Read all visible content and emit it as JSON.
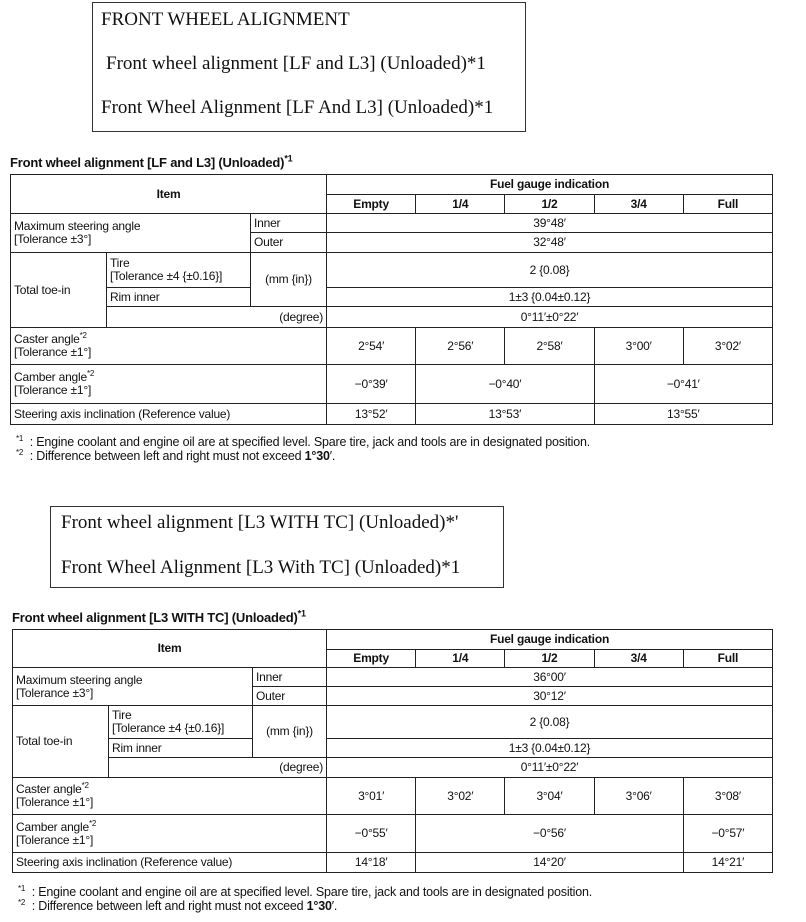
{
  "box1": {
    "heading": "FRONT WHEEL ALIGNMENT",
    "line1": "Front wheel alignment [LF and L3] (Unloaded)*1",
    "line2": "Front Wheel Alignment [LF And L3] (Unloaded)*1"
  },
  "box2": {
    "line1": "Front wheel alignment [L3 WITH TC] (Unloaded)*'",
    "line2": "Front Wheel Alignment [L3 With TC] (Unloaded)*1"
  },
  "tables": [
    {
      "title": "Front wheel alignment [LF and L3] (Unloaded)",
      "title_mark": "*1",
      "header": {
        "item": "Item",
        "group": "Fuel gauge indication",
        "columns": [
          "Empty",
          "1/4",
          "1/2",
          "3/4",
          "Full"
        ]
      },
      "max_steering": {
        "label": "Maximum steering angle",
        "tolerance": "[Tolerance ±3°]",
        "inner_label": "Inner",
        "inner": "39°48′",
        "outer_label": "Outer",
        "outer": "32°48′"
      },
      "toe_in": {
        "label": "Total toe-in",
        "tire_label": "Tire",
        "tire_tolerance": "[Tolerance ±4 {±0.16}]",
        "unit_mm": "(mm {in})",
        "tire": "2 {0.08}",
        "rim_label": "Rim inner",
        "rim": "1±3 {0.04±0.12}",
        "unit_deg": "(degree)",
        "degree": "0°11′±0°22′"
      },
      "caster": {
        "label": "Caster angle",
        "mark": "*2",
        "tolerance": "[Tolerance ±1°]",
        "values": [
          {
            "v": "2°54′",
            "span": 1
          },
          {
            "v": "2°56′",
            "span": 1
          },
          {
            "v": "2°58′",
            "span": 1
          },
          {
            "v": "3°00′",
            "span": 1
          },
          {
            "v": "3°02′",
            "span": 1
          }
        ]
      },
      "camber": {
        "label": "Camber angle",
        "mark": "*2",
        "tolerance": "[Tolerance ±1°]",
        "values": [
          {
            "v": "−0°39′",
            "span": 1
          },
          {
            "v": "−0°40′",
            "span": 2
          },
          {
            "v": "−0°41′",
            "span": 2
          }
        ]
      },
      "sai": {
        "label": "Steering axis inclination (Reference value)",
        "values": [
          {
            "v": "13°52′",
            "span": 1
          },
          {
            "v": "13°53′",
            "span": 2
          },
          {
            "v": "13°55′",
            "span": 2
          }
        ]
      },
      "footnotes": [
        {
          "mark": "*1",
          "text": ": Engine coolant and engine oil are at specified level. Spare tire, jack and tools are in designated position."
        },
        {
          "mark": "*2",
          "text": ": Difference between left and right must not exceed ",
          "bold": "1°30",
          "tail": "′."
        }
      ]
    },
    {
      "title": "Front wheel alignment [L3 WITH TC] (Unloaded)",
      "title_mark": "*1",
      "header": {
        "item": "Item",
        "group": "Fuel gauge indication",
        "columns": [
          "Empty",
          "1/4",
          "1/2",
          "3/4",
          "Full"
        ]
      },
      "max_steering": {
        "label": "Maximum steering angle",
        "tolerance": "[Tolerance ±3°]",
        "inner_label": "Inner",
        "inner": "36°00′",
        "outer_label": "Outer",
        "outer": "30°12′"
      },
      "toe_in": {
        "label": "Total toe-in",
        "tire_label": "Tire",
        "tire_tolerance": "[Tolerance ±4 {±0.16}]",
        "unit_mm": "(mm {in})",
        "tire": "2 {0.08}",
        "rim_label": "Rim inner",
        "rim": "1±3 {0.04±0.12}",
        "unit_deg": "(degree)",
        "degree": "0°11′±0°22′"
      },
      "caster": {
        "label": "Caster angle",
        "mark": "*2",
        "tolerance": "[Tolerance ±1°]",
        "values": [
          {
            "v": "3°01′",
            "span": 1
          },
          {
            "v": "3°02′",
            "span": 1
          },
          {
            "v": "3°04′",
            "span": 1
          },
          {
            "v": "3°06′",
            "span": 1
          },
          {
            "v": "3°08′",
            "span": 1
          }
        ]
      },
      "camber": {
        "label": "Camber angle",
        "mark": "*2",
        "tolerance": "[Tolerance ±1°]",
        "values": [
          {
            "v": "−0°55′",
            "span": 1
          },
          {
            "v": "−0°56′",
            "span": 3
          },
          {
            "v": "−0°57′",
            "span": 1
          }
        ]
      },
      "sai": {
        "label": "Steering axis inclination (Reference value)",
        "values": [
          {
            "v": "14°18′",
            "span": 1
          },
          {
            "v": "14°20′",
            "span": 3
          },
          {
            "v": "14°21′",
            "span": 1
          }
        ]
      },
      "footnotes": [
        {
          "mark": "*1",
          "text": ": Engine coolant and engine oil are at specified level. Spare tire, jack and tools are in designated position."
        },
        {
          "mark": "*2",
          "text": ": Difference between left and right must not exceed ",
          "bold": "1°30",
          "tail": "′."
        }
      ]
    }
  ]
}
